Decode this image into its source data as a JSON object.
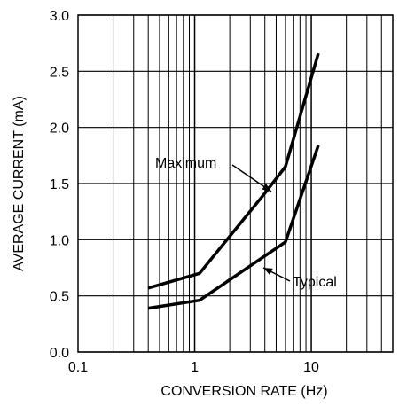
{
  "chart_data": {
    "type": "line",
    "title": "",
    "xlabel": "CONVERSION RATE (Hz)",
    "ylabel": "AVERAGE CURRENT (mA)",
    "xscale": "log",
    "xlim": [
      0.1,
      50
    ],
    "ylim": [
      0,
      3.0
    ],
    "grid": true,
    "xticks": [
      0.1,
      1,
      10
    ],
    "xtick_labels": [
      "0.1",
      "1",
      "10"
    ],
    "yticks": [
      0,
      0.5,
      1.0,
      1.5,
      2.0,
      2.5,
      3.0
    ],
    "ytick_labels": [
      "0.0",
      "0.5",
      "1.0",
      "1.5",
      "2.0",
      "2.5",
      "3.0"
    ],
    "series": [
      {
        "name": "Maximum",
        "x": [
          0.4,
          1.1,
          3.9,
          6.0,
          11.5
        ],
        "y": [
          0.57,
          0.7,
          1.4,
          1.65,
          2.66
        ]
      },
      {
        "name": "Typical",
        "x": [
          0.4,
          1.1,
          6.0,
          11.5
        ],
        "y": [
          0.39,
          0.46,
          0.98,
          1.84
        ]
      }
    ],
    "annotations": [
      {
        "text": "Maximum",
        "series": "Maximum"
      },
      {
        "text": "Typical",
        "series": "Typical"
      }
    ],
    "line_color": "#000000",
    "grid_color": "#000000"
  }
}
